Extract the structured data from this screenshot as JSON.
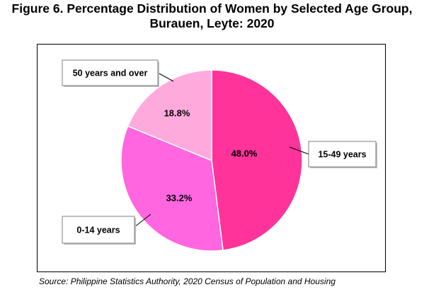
{
  "chart_data": {
    "type": "pie",
    "title": "Figure 6. Percentage Distribution of Women by Selected Age Group,",
    "subtitle": "Burauen, Leyte: 2020",
    "slices": [
      {
        "label": "15-49 years",
        "value": 48.0,
        "value_label": "48.0%",
        "color": "#ff3399"
      },
      {
        "label": "0-14 years",
        "value": 33.2,
        "value_label": "33.2%",
        "color": "#ff66e0"
      },
      {
        "label": "50 years and over",
        "value": 18.8,
        "value_label": "18.8%",
        "color": "#ffaadd"
      }
    ],
    "start_angle": "12 o'clock",
    "direction": "clockwise",
    "legend": "callout labels"
  },
  "source": "Source: Philippine Statistics Authority, 2020 Census of Population and Housing"
}
